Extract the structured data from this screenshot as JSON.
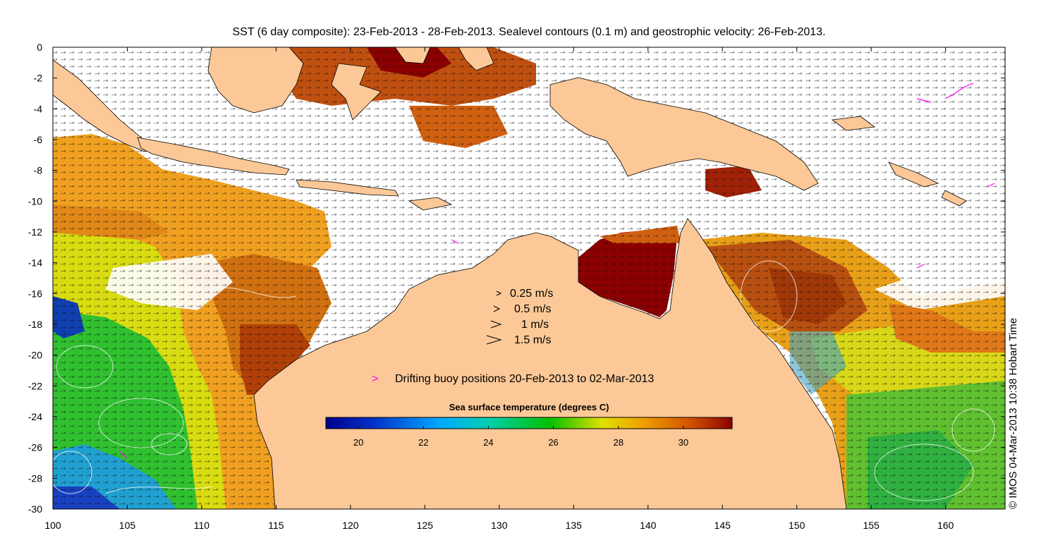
{
  "title": "SST (6 day composite): 23-Feb-2013 - 28-Feb-2013. Sealevel contours (0.1 m) and geostrophic velocity: 26-Feb-2013.",
  "credit": "© IMOS 04-Mar-2013 10:38 Hobart Time",
  "axes": {
    "x_ticks": [
      "100",
      "105",
      "110",
      "115",
      "120",
      "125",
      "130",
      "135",
      "140",
      "145",
      "150",
      "155",
      "160"
    ],
    "y_ticks": [
      "0",
      "-2",
      "-4",
      "-6",
      "-8",
      "-10",
      "-12",
      "-14",
      "-16",
      "-18",
      "-20",
      "-22",
      "-24",
      "-26",
      "-28",
      "-30"
    ]
  },
  "velocity_legend": {
    "items": [
      "0.25 m/s",
      "0.5 m/s",
      "1 m/s",
      "1.5 m/s"
    ]
  },
  "buoy_legend": {
    "symbol": ">",
    "label": "Drifting buoy positions 20-Feb-2013 to 02-Mar-2013",
    "color": "#ff00ff"
  },
  "colorbar": {
    "title": "Sea surface temperature (degrees C)",
    "ticks": [
      "20",
      "22",
      "24",
      "26",
      "28",
      "30"
    ],
    "min": 19,
    "max": 31.5
  },
  "colors": {
    "land": "#fcc897",
    "cold": "#00008b",
    "hot": "#8b0000"
  }
}
